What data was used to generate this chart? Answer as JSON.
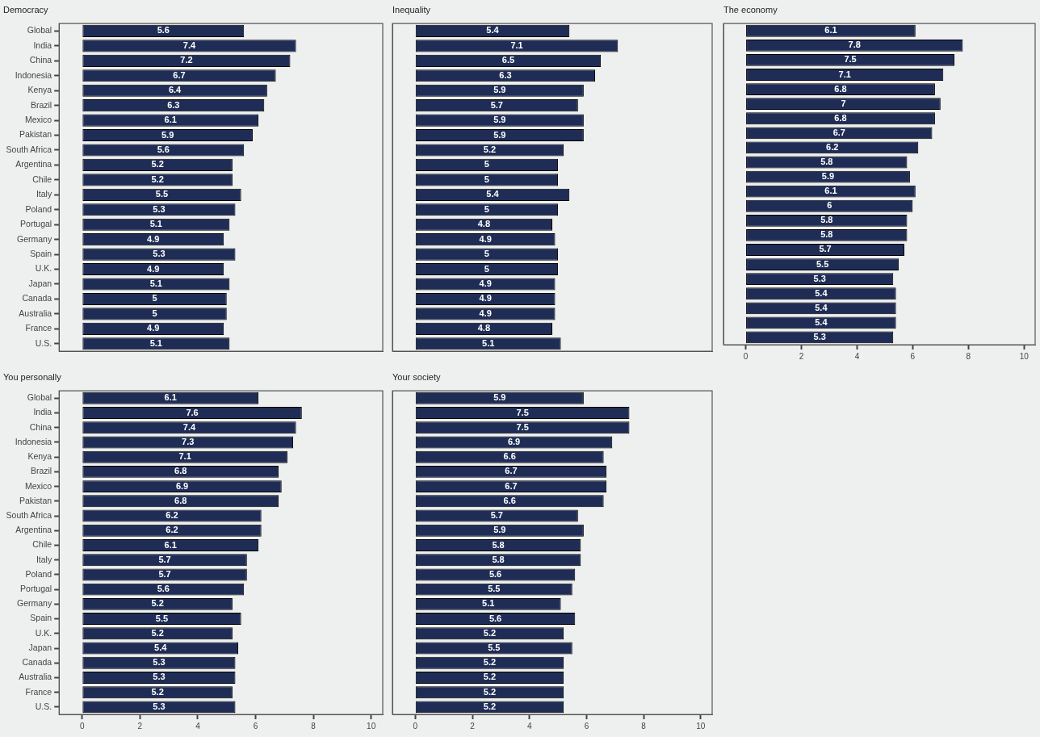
{
  "chart_data": [
    {
      "type": "bar",
      "orientation": "horizontal",
      "title": "Democracy",
      "categories": [
        "Global",
        "India",
        "China",
        "Indonesia",
        "Kenya",
        "Brazil",
        "Mexico",
        "Pakistan",
        "South Africa",
        "Argentina",
        "Chile",
        "Italy",
        "Poland",
        "Portugal",
        "Germany",
        "Spain",
        "U.K.",
        "Japan",
        "Canada",
        "Australia",
        "France",
        "U.S."
      ],
      "color": "#1f2d56",
      "values": [
        5.6,
        7.4,
        7.2,
        6.7,
        6.4,
        6.3,
        6.1,
        5.9,
        5.6,
        5.2,
        5.2,
        5.5,
        5.3,
        5.1,
        4.9,
        5.3,
        4.9,
        5.1,
        5,
        5,
        4.9,
        5.1
      ],
      "data_labels": true,
      "xlim": [
        -0.8,
        10.4
      ],
      "xticks": [
        0,
        2,
        4,
        6,
        8,
        10
      ],
      "grid": false,
      "legend": false,
      "tick_labels": "y"
    },
    {
      "type": "bar",
      "orientation": "horizontal",
      "title": "Inequality",
      "categories": [
        null,
        null,
        null,
        null,
        null,
        null,
        null,
        null,
        null,
        null,
        null,
        null,
        null,
        null,
        null,
        null,
        null,
        null,
        null,
        null,
        null,
        null
      ],
      "color": "#1f2d56",
      "values": [
        5.4,
        7.1,
        6.5,
        6.3,
        5.9,
        5.7,
        5.9,
        5.9,
        5.2,
        5,
        5,
        5.4,
        5,
        4.8,
        4.9,
        5,
        5,
        4.9,
        4.9,
        4.9,
        4.8,
        5.1
      ],
      "data_labels": true,
      "xlim": [
        -0.8,
        10.4
      ],
      "xticks": [
        0,
        2,
        4,
        6,
        8,
        10
      ],
      "grid": false,
      "legend": false,
      "tick_labels": false
    },
    {
      "type": "bar",
      "orientation": "horizontal",
      "title": "The economy",
      "categories": [
        null,
        null,
        null,
        null,
        null,
        null,
        null,
        null,
        null,
        null,
        null,
        null,
        null,
        null,
        null,
        null,
        null,
        null,
        null,
        null,
        null,
        null
      ],
      "color": "#1f2d56",
      "values": [
        6.1,
        7.8,
        7.5,
        7.1,
        6.8,
        7,
        6.8,
        6.7,
        6.2,
        5.8,
        5.9,
        6.1,
        6,
        5.8,
        5.8,
        5.7,
        5.5,
        5.3,
        5.4,
        5.4,
        5.4,
        5.3
      ],
      "data_labels": true,
      "xlim": [
        -0.8,
        10.4
      ],
      "xticks": [
        0,
        2,
        4,
        6,
        8,
        10
      ],
      "grid": false,
      "legend": false,
      "tick_labels": "x"
    },
    {
      "type": "bar",
      "orientation": "horizontal",
      "title": "You personally",
      "categories": [
        "Global",
        "India",
        "China",
        "Indonesia",
        "Kenya",
        "Brazil",
        "Mexico",
        "Pakistan",
        "South Africa",
        "Argentina",
        "Chile",
        "Italy",
        "Poland",
        "Portugal",
        "Germany",
        "Spain",
        "U.K.",
        "Japan",
        "Canada",
        "Australia",
        "France",
        "U.S."
      ],
      "color": "#1f2d56",
      "values": [
        6.1,
        7.6,
        7.4,
        7.3,
        7.1,
        6.8,
        6.9,
        6.8,
        6.2,
        6.2,
        6.1,
        5.7,
        5.7,
        5.6,
        5.2,
        5.5,
        5.2,
        5.4,
        5.3,
        5.3,
        5.2,
        5.3
      ],
      "data_labels": true,
      "xlim": [
        -0.8,
        10.4
      ],
      "xticks": [
        0,
        2,
        4,
        6,
        8,
        10
      ],
      "grid": false,
      "legend": false
    },
    {
      "type": "bar",
      "orientation": "horizontal",
      "title": "Your society",
      "categories": [
        null,
        null,
        null,
        null,
        null,
        null,
        null,
        null,
        null,
        null,
        null,
        null,
        null,
        null,
        null,
        null,
        null,
        null,
        null,
        null,
        null,
        null
      ],
      "color": "#1f2d56",
      "values": [
        5.9,
        7.5,
        7.5,
        6.9,
        6.6,
        6.7,
        6.7,
        6.6,
        5.7,
        5.9,
        5.8,
        5.8,
        5.6,
        5.5,
        5.1,
        5.6,
        5.2,
        5.5,
        5.2,
        5.2,
        5.2,
        5.2
      ],
      "data_labels": true,
      "xlim": [
        -0.8,
        10.4
      ],
      "xticks": [
        0,
        2,
        4,
        6,
        8,
        10
      ],
      "grid": false,
      "legend": false,
      "tick_labels": "x"
    }
  ]
}
